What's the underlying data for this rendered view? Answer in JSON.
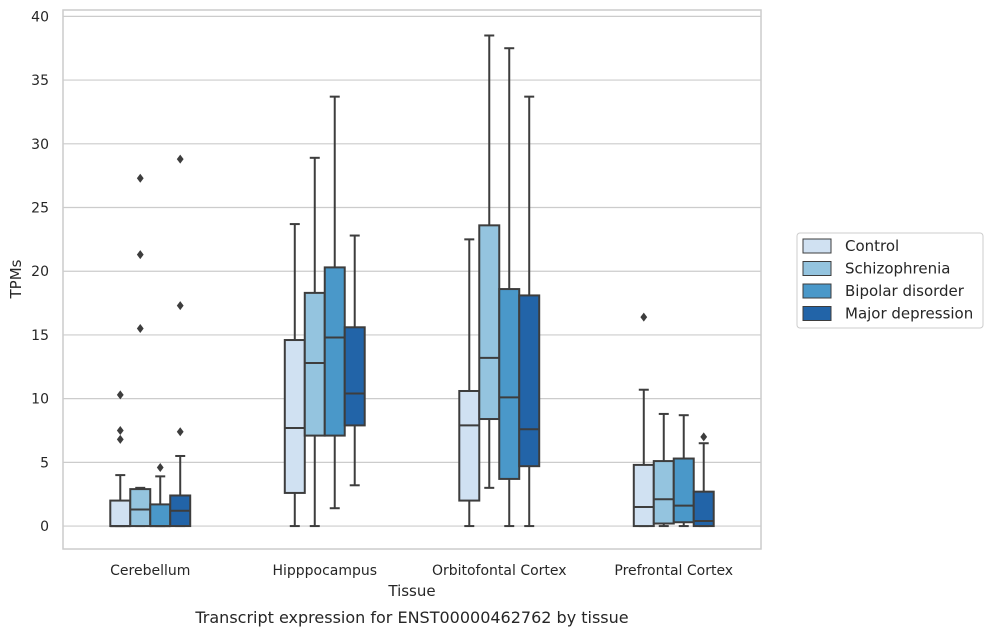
{
  "chart_data": {
    "type": "boxplot",
    "title": "",
    "caption": "Transcript expression for ENST00000462762 by tissue",
    "xlabel": "Tissue",
    "ylabel": "TPMs",
    "ylim": [
      -1.8,
      40.5
    ],
    "yticks": [
      0,
      5,
      10,
      15,
      20,
      25,
      30,
      35,
      40
    ],
    "grid": "horizontal",
    "legend_position": "right",
    "categories": [
      "Cerebellum",
      "Hipppocampus",
      "Orbitofontal Cortex",
      "Prefrontal Cortex"
    ],
    "series": [
      {
        "name": "Control",
        "color": "#d0e1f2",
        "boxes": [
          {
            "min": 0,
            "q1": 0,
            "median": 0,
            "q3": 2.0,
            "max": 4.0,
            "outliers": [
              6.8,
              7.5,
              10.3
            ]
          },
          {
            "min": 0,
            "q1": 2.6,
            "median": 7.7,
            "q3": 14.6,
            "max": 23.7,
            "outliers": []
          },
          {
            "min": 0,
            "q1": 2.0,
            "median": 7.9,
            "q3": 10.6,
            "max": 22.5,
            "outliers": []
          },
          {
            "min": 0,
            "q1": 0,
            "median": 1.5,
            "q3": 4.8,
            "max": 10.7,
            "outliers": [
              16.4
            ]
          }
        ]
      },
      {
        "name": "Schizophrenia",
        "color": "#94c4df",
        "boxes": [
          {
            "min": 0,
            "q1": 0,
            "median": 1.3,
            "q3": 2.9,
            "max": 3.0,
            "outliers": [
              15.5,
              21.3,
              27.3
            ]
          },
          {
            "min": 0,
            "q1": 7.1,
            "median": 12.8,
            "q3": 18.3,
            "max": 28.9,
            "outliers": []
          },
          {
            "min": 3.0,
            "q1": 8.4,
            "median": 13.2,
            "q3": 23.6,
            "max": 38.5,
            "outliers": []
          },
          {
            "min": 0,
            "q1": 0.2,
            "median": 2.1,
            "q3": 5.1,
            "max": 8.8,
            "outliers": []
          }
        ]
      },
      {
        "name": "Bipolar disorder",
        "color": "#4a98c9",
        "boxes": [
          {
            "min": 0,
            "q1": 0,
            "median": 0,
            "q3": 1.7,
            "max": 3.9,
            "outliers": [
              4.6
            ]
          },
          {
            "min": 1.4,
            "q1": 7.1,
            "median": 14.8,
            "q3": 20.3,
            "max": 33.7,
            "outliers": []
          },
          {
            "min": 0,
            "q1": 3.7,
            "median": 10.1,
            "q3": 18.6,
            "max": 37.5,
            "outliers": []
          },
          {
            "min": 0,
            "q1": 0.3,
            "median": 1.6,
            "q3": 5.3,
            "max": 8.7,
            "outliers": []
          }
        ]
      },
      {
        "name": "Major depression",
        "color": "#2264a8",
        "boxes": [
          {
            "min": 0,
            "q1": 0,
            "median": 1.2,
            "q3": 2.4,
            "max": 5.5,
            "outliers": [
              7.4,
              17.3,
              28.8
            ]
          },
          {
            "min": 3.2,
            "q1": 7.9,
            "median": 10.4,
            "q3": 15.6,
            "max": 22.8,
            "outliers": []
          },
          {
            "min": 0,
            "q1": 4.7,
            "median": 7.6,
            "q3": 18.1,
            "max": 33.7,
            "outliers": []
          },
          {
            "min": 0,
            "q1": 0,
            "median": 0.4,
            "q3": 2.7,
            "max": 6.5,
            "outliers": [
              7.0
            ]
          }
        ]
      }
    ]
  }
}
